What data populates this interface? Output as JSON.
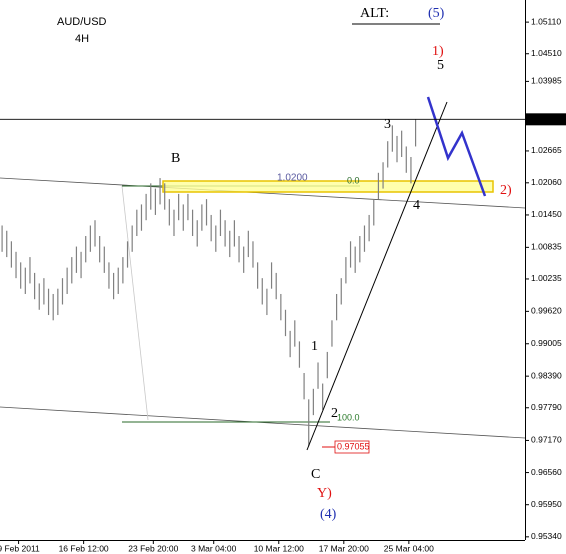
{
  "chart_data": {
    "type": "ohlc",
    "title": "AUD/USD",
    "subtitle": "4H",
    "color": "#808080",
    "highs": [
      1.0125,
      1.0115,
      1.0095,
      1.0075,
      1.0055,
      1.0045,
      1.0065,
      1.0035,
      1.0015,
      1.0025,
      1.0005,
      0.9995,
      1.0005,
      1.0025,
      1.0045,
      1.0065,
      1.0085,
      1.0075,
      1.0105,
      1.0125,
      1.0135,
      1.0105,
      1.0085,
      1.0055,
      1.0035,
      1.0045,
      1.0065,
      1.0095,
      1.0125,
      1.0155,
      1.0165,
      1.0185,
      1.0205,
      1.0195,
      1.0215,
      1.0205,
      1.0175,
      1.0155,
      1.0185,
      1.0165,
      1.0185,
      1.0155,
      1.0135,
      1.0165,
      1.0175,
      1.0145,
      1.0125,
      1.0155,
      1.0135,
      1.0115,
      1.0135,
      1.0105,
      1.0085,
      1.0115,
      1.0095,
      1.0055,
      1.0025,
      1.0005,
      1.0055,
      1.0035,
      0.9995,
      0.9965,
      0.9925,
      0.9945,
      0.9905,
      0.9845,
      0.9795,
      0.9815,
      0.9865,
      0.9825,
      0.9885,
      0.9945,
      0.9995,
      1.0025,
      1.0065,
      1.0095,
      1.0085,
      1.0105,
      1.0125,
      1.0145,
      1.0175,
      1.0225,
      1.0245,
      1.0285,
      1.0315,
      1.0295,
      1.0305,
      1.0275,
      1.0255,
      1.0326
    ],
    "lows": [
      1.0075,
      1.0065,
      1.0045,
      1.0025,
      1.0005,
      0.9995,
      1.0015,
      0.9985,
      0.9965,
      0.9975,
      0.9955,
      0.9945,
      0.9955,
      0.9975,
      0.9995,
      1.0015,
      1.0035,
      1.0025,
      1.0055,
      1.0075,
      1.0085,
      1.0055,
      1.0035,
      1.0005,
      0.9985,
      0.9995,
      1.0015,
      1.0045,
      1.0075,
      1.0105,
      1.0115,
      1.0135,
      1.0155,
      1.0145,
      1.0165,
      1.0155,
      1.0125,
      1.0105,
      1.0135,
      1.0115,
      1.0135,
      1.0105,
      1.0085,
      1.0115,
      1.0125,
      1.0095,
      1.0075,
      1.0105,
      1.0085,
      1.0065,
      1.0085,
      1.0055,
      1.0035,
      1.0065,
      1.0045,
      1.0005,
      0.9975,
      0.9955,
      1.0005,
      0.9985,
      0.9945,
      0.9915,
      0.9875,
      0.9895,
      0.9855,
      0.9795,
      0.9706,
      0.9765,
      0.9815,
      0.9775,
      0.9835,
      0.9895,
      0.9945,
      0.9975,
      1.0015,
      1.0045,
      1.0035,
      1.0055,
      1.0075,
      1.0095,
      1.0125,
      1.0175,
      1.0195,
      1.0235,
      1.0265,
      1.0245,
      1.0255,
      1.0225,
      1.0205,
      1.0275
    ],
    "ylim": [
      0.9528,
      1.0553
    ],
    "yticks": [
      {
        "value": 1.0511,
        "label": "1.05110"
      },
      {
        "value": 1.0451,
        "label": "1.04510"
      },
      1.03985,
      1.02665,
      {
        "value": 1.0206,
        "label": "1.02060"
      },
      {
        "value": 1.0145,
        "label": "1.01450"
      },
      1.00835,
      1.00235,
      {
        "value": 0.9962,
        "label": "0.99620"
      },
      0.99005,
      {
        "value": 0.9839,
        "label": "0.98390"
      },
      {
        "value": 0.9779,
        "label": "0.97790"
      },
      {
        "value": 0.9717,
        "label": "0.97170"
      },
      {
        "value": 0.9656,
        "label": "0.96560"
      },
      {
        "value": 0.9595,
        "label": "0.95950"
      },
      {
        "value": 0.9534,
        "label": "0.95340"
      }
    ],
    "last_price": 1.03265,
    "xlim": [
      0,
      113
    ],
    "xticks": [
      {
        "value": 4,
        "label": "9 Feb 2011"
      },
      {
        "value": 18,
        "label": "16 Feb 12:00"
      },
      {
        "value": 33,
        "label": "23 Feb 20:00"
      },
      {
        "value": 46,
        "label": "3 Mar 04:00"
      },
      {
        "value": 60,
        "label": "10 Mar 12:00"
      },
      {
        "value": 74,
        "label": "17 Mar 20:00"
      },
      {
        "value": 88,
        "label": "25 Mar 04:00"
      }
    ],
    "annotations": [
      {
        "text": "ALT:",
        "color": "#000000"
      },
      {
        "text": "(5)",
        "color": "#1f2fb0"
      },
      {
        "text": "1)",
        "color": "#e01010"
      },
      {
        "text": "5",
        "color": "#000000"
      },
      {
        "text": "3",
        "color": "#000000"
      },
      {
        "text": "B",
        "color": "#000000"
      },
      {
        "text": "1.0200",
        "color": "#5a5aa0"
      },
      {
        "text": "0.0",
        "color": "#2a6a2a"
      },
      {
        "text": "2)",
        "color": "#e01010"
      },
      {
        "text": "4",
        "color": "#000000"
      },
      {
        "text": "1",
        "color": "#000000"
      },
      {
        "text": "2",
        "color": "#000000"
      },
      {
        "text": "100.0",
        "color": "#2a7a2a"
      },
      {
        "text": "0.97055",
        "color": "#e01010"
      },
      {
        "text": "C",
        "color": "#000000"
      },
      {
        "text": "Y)",
        "color": "#e01010"
      },
      {
        "text": "(4)",
        "color": "#1f2fb0"
      }
    ]
  }
}
